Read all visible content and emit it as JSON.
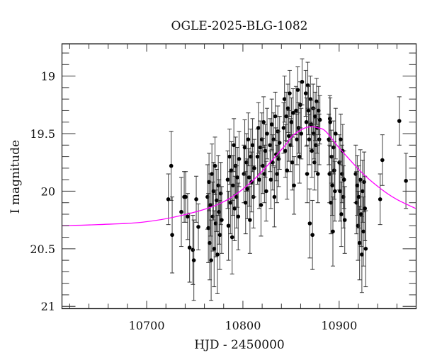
{
  "chart_data": {
    "type": "scatter",
    "title": "OGLE-2025-BLG-1082",
    "xlabel": "HJD - 2450000",
    "ylabel": "I magnitude",
    "xlim": [
      10612,
      10980
    ],
    "ylim": [
      21.02,
      18.72
    ],
    "y_inverted": true,
    "grid": false,
    "x_ticks": [
      10700,
      10800,
      10900
    ],
    "x_tick_labels": [
      "10700",
      "10800",
      "10900"
    ],
    "x_minor_step": 20,
    "y_ticks": [
      19,
      19.5,
      20,
      20.5,
      21
    ],
    "y_tick_labels": [
      "19",
      "19.5",
      "20",
      "20.5",
      "21"
    ],
    "y_minor_step": 0.1,
    "colors": {
      "points": "#000000",
      "error_bars": "#333333",
      "model": "#ff00ff",
      "frame": "#222222"
    },
    "model_curve": {
      "x": [
        10612.5,
        10650,
        10695,
        10736.5,
        10778,
        10810,
        10842,
        10851.5,
        10862,
        10870,
        10878,
        10886,
        10900.7,
        10925,
        10945,
        10959.6,
        10979.4
      ],
      "y": [
        20.3,
        20.29,
        20.27,
        20.21,
        20.1,
        19.91,
        19.62,
        19.52,
        19.46,
        19.44,
        19.45,
        19.48,
        19.63,
        19.85,
        19.99,
        20.07,
        20.15
      ]
    },
    "points_format": [
      "HJD",
      "I",
      "err"
    ],
    "points": [
      [
        10722.5,
        20.07,
        0.22
      ],
      [
        10725.5,
        19.78,
        0.3
      ],
      [
        10726.5,
        20.38,
        0.33
      ],
      [
        10736.0,
        20.18,
        0.3
      ],
      [
        10739.0,
        20.05,
        0.22
      ],
      [
        10740.5,
        20.05,
        0.22
      ],
      [
        10742.6,
        20.22,
        0.2
      ],
      [
        10744.6,
        20.49,
        0.3
      ],
      [
        10748.0,
        20.51,
        0.3
      ],
      [
        10749.0,
        20.6,
        0.35
      ],
      [
        10751.5,
        20.07,
        0.2
      ],
      [
        10753.7,
        20.31,
        0.2
      ],
      [
        10763.2,
        20.05,
        0.28
      ],
      [
        10764.1,
        20.32,
        0.3
      ],
      [
        10764.8,
        19.92,
        0.25
      ],
      [
        10765.5,
        20.45,
        0.32
      ],
      [
        10766.3,
        20.12,
        0.27
      ],
      [
        10767.0,
        20.6,
        0.35
      ],
      [
        10767.8,
        19.85,
        0.26
      ],
      [
        10768.6,
        20.22,
        0.3
      ],
      [
        10769.4,
        20.0,
        0.25
      ],
      [
        10770.1,
        20.5,
        0.33
      ],
      [
        10771.0,
        19.78,
        0.25
      ],
      [
        10771.8,
        20.28,
        0.29
      ],
      [
        10772.7,
        20.08,
        0.27
      ],
      [
        10773.5,
        20.55,
        0.34
      ],
      [
        10774.4,
        19.95,
        0.26
      ],
      [
        10775.2,
        20.18,
        0.28
      ],
      [
        10776.1,
        20.38,
        0.3
      ],
      [
        10777.0,
        20.02,
        0.27
      ],
      [
        10777.9,
        20.25,
        0.29
      ],
      [
        10784.2,
        19.9,
        0.25
      ],
      [
        10785.0,
        20.3,
        0.3
      ],
      [
        10786.1,
        19.7,
        0.24
      ],
      [
        10787.0,
        20.1,
        0.27
      ],
      [
        10787.9,
        19.82,
        0.25
      ],
      [
        10788.8,
        20.4,
        0.32
      ],
      [
        10789.7,
        19.95,
        0.26
      ],
      [
        10790.6,
        19.6,
        0.23
      ],
      [
        10791.5,
        20.15,
        0.28
      ],
      [
        10792.4,
        19.78,
        0.25
      ],
      [
        10793.3,
        20.05,
        0.27
      ],
      [
        10794.2,
        19.88,
        0.26
      ],
      [
        10795.1,
        20.22,
        0.29
      ],
      [
        10796.0,
        19.72,
        0.24
      ],
      [
        10801.0,
        19.85,
        0.25
      ],
      [
        10801.9,
        19.62,
        0.24
      ],
      [
        10802.8,
        20.1,
        0.27
      ],
      [
        10803.7,
        19.75,
        0.25
      ],
      [
        10804.6,
        19.98,
        0.26
      ],
      [
        10805.5,
        19.55,
        0.23
      ],
      [
        10806.4,
        19.88,
        0.25
      ],
      [
        10807.3,
        20.25,
        0.29
      ],
      [
        10808.2,
        19.7,
        0.24
      ],
      [
        10809.1,
        19.92,
        0.26
      ],
      [
        10810.0,
        19.6,
        0.23
      ],
      [
        10810.9,
        20.05,
        0.27
      ],
      [
        10811.8,
        19.8,
        0.25
      ],
      [
        10815.2,
        19.7,
        0.24
      ],
      [
        10816.1,
        19.45,
        0.22
      ],
      [
        10817.0,
        19.9,
        0.25
      ],
      [
        10817.9,
        19.62,
        0.23
      ],
      [
        10818.8,
        20.12,
        0.27
      ],
      [
        10819.7,
        19.55,
        0.23
      ],
      [
        10820.6,
        19.78,
        0.24
      ],
      [
        10821.5,
        19.4,
        0.22
      ],
      [
        10822.4,
        19.85,
        0.25
      ],
      [
        10823.3,
        19.65,
        0.23
      ],
      [
        10824.2,
        20.0,
        0.26
      ],
      [
        10825.1,
        19.5,
        0.22
      ],
      [
        10828.2,
        19.6,
        0.23
      ],
      [
        10829.1,
        19.9,
        0.25
      ],
      [
        10830.0,
        19.42,
        0.22
      ],
      [
        10830.9,
        19.75,
        0.24
      ],
      [
        10831.8,
        19.55,
        0.23
      ],
      [
        10832.7,
        20.05,
        0.26
      ],
      [
        10833.6,
        19.35,
        0.21
      ],
      [
        10834.5,
        19.68,
        0.23
      ],
      [
        10835.4,
        19.85,
        0.25
      ],
      [
        10836.3,
        19.48,
        0.22
      ],
      [
        10837.2,
        19.72,
        0.24
      ],
      [
        10838.1,
        19.58,
        0.23
      ],
      [
        10842.3,
        19.45,
        0.22
      ],
      [
        10843.2,
        19.2,
        0.2
      ],
      [
        10844.1,
        19.65,
        0.23
      ],
      [
        10845.0,
        19.35,
        0.21
      ],
      [
        10845.9,
        19.82,
        0.25
      ],
      [
        10846.8,
        19.28,
        0.21
      ],
      [
        10847.7,
        19.52,
        0.22
      ],
      [
        10848.6,
        19.15,
        0.2
      ],
      [
        10849.5,
        19.6,
        0.23
      ],
      [
        10850.4,
        19.4,
        0.21
      ],
      [
        10851.3,
        19.75,
        0.24
      ],
      [
        10852.2,
        19.32,
        0.21
      ],
      [
        10853.1,
        19.95,
        0.25
      ],
      [
        10855.2,
        19.3,
        0.21
      ],
      [
        10856.1,
        19.55,
        0.22
      ],
      [
        10857.0,
        19.12,
        0.2
      ],
      [
        10857.9,
        19.45,
        0.22
      ],
      [
        10858.8,
        19.7,
        0.23
      ],
      [
        10859.7,
        19.25,
        0.2
      ],
      [
        10860.6,
        19.5,
        0.22
      ],
      [
        10861.5,
        19.05,
        0.2
      ],
      [
        10865.3,
        19.15,
        0.2
      ],
      [
        10866.0,
        19.4,
        0.21
      ],
      [
        10866.7,
        19.85,
        0.25
      ],
      [
        10867.4,
        19.08,
        0.2
      ],
      [
        10868.1,
        19.3,
        0.21
      ],
      [
        10868.8,
        19.55,
        0.22
      ],
      [
        10869.5,
        20.28,
        0.3
      ],
      [
        10870.2,
        19.2,
        0.2
      ],
      [
        10870.9,
        19.42,
        0.21
      ],
      [
        10871.6,
        19.65,
        0.23
      ],
      [
        10872.3,
        20.38,
        0.3
      ],
      [
        10873.0,
        19.28,
        0.21
      ],
      [
        10873.7,
        19.5,
        0.22
      ],
      [
        10874.4,
        19.75,
        0.24
      ],
      [
        10875.1,
        19.35,
        0.21
      ],
      [
        10875.8,
        19.6,
        0.23
      ],
      [
        10876.5,
        19.22,
        0.2
      ],
      [
        10877.2,
        19.45,
        0.22
      ],
      [
        10877.9,
        19.85,
        0.25
      ],
      [
        10878.6,
        19.3,
        0.21
      ],
      [
        10879.3,
        19.55,
        0.22
      ],
      [
        10880.0,
        19.38,
        0.21
      ],
      [
        10889.3,
        19.55,
        0.22
      ],
      [
        10890.0,
        19.85,
        0.25
      ],
      [
        10890.4,
        19.37,
        0.2
      ],
      [
        10890.7,
        19.4,
        0.21
      ],
      [
        10891.4,
        20.1,
        0.27
      ],
      [
        10892.1,
        19.7,
        0.23
      ],
      [
        10892.8,
        19.95,
        0.26
      ],
      [
        10893.5,
        20.35,
        0.3
      ],
      [
        10894.2,
        19.62,
        0.23
      ],
      [
        10894.9,
        19.82,
        0.25
      ],
      [
        10895.6,
        20.0,
        0.26
      ],
      [
        10896.3,
        19.5,
        0.22
      ],
      [
        10900.2,
        19.75,
        0.24
      ],
      [
        10900.9,
        20.0,
        0.26
      ],
      [
        10901.6,
        19.55,
        0.22
      ],
      [
        10902.3,
        20.2,
        0.28
      ],
      [
        10903.0,
        19.85,
        0.25
      ],
      [
        10903.7,
        19.65,
        0.23
      ],
      [
        10904.4,
        20.05,
        0.27
      ],
      [
        10905.1,
        19.9,
        0.25
      ],
      [
        10905.8,
        20.25,
        0.29
      ],
      [
        10917.2,
        19.85,
        0.25
      ],
      [
        10918.0,
        20.1,
        0.27
      ],
      [
        10918.8,
        19.95,
        0.26
      ],
      [
        10919.6,
        20.3,
        0.3
      ],
      [
        10920.4,
        20.05,
        0.27
      ],
      [
        10921.2,
        20.45,
        0.32
      ],
      [
        10922.0,
        19.9,
        0.26
      ],
      [
        10922.8,
        20.2,
        0.28
      ],
      [
        10923.6,
        20.55,
        0.33
      ],
      [
        10924.4,
        20.0,
        0.27
      ],
      [
        10925.2,
        20.35,
        0.3
      ],
      [
        10926.0,
        19.92,
        0.26
      ],
      [
        10926.8,
        20.15,
        0.28
      ],
      [
        10927.6,
        20.5,
        0.33
      ],
      [
        10942.6,
        20.07,
        0.22
      ],
      [
        10944.9,
        19.73,
        0.22
      ],
      [
        10962.5,
        19.39,
        0.21
      ],
      [
        10969.4,
        19.91,
        0.24
      ]
    ]
  }
}
